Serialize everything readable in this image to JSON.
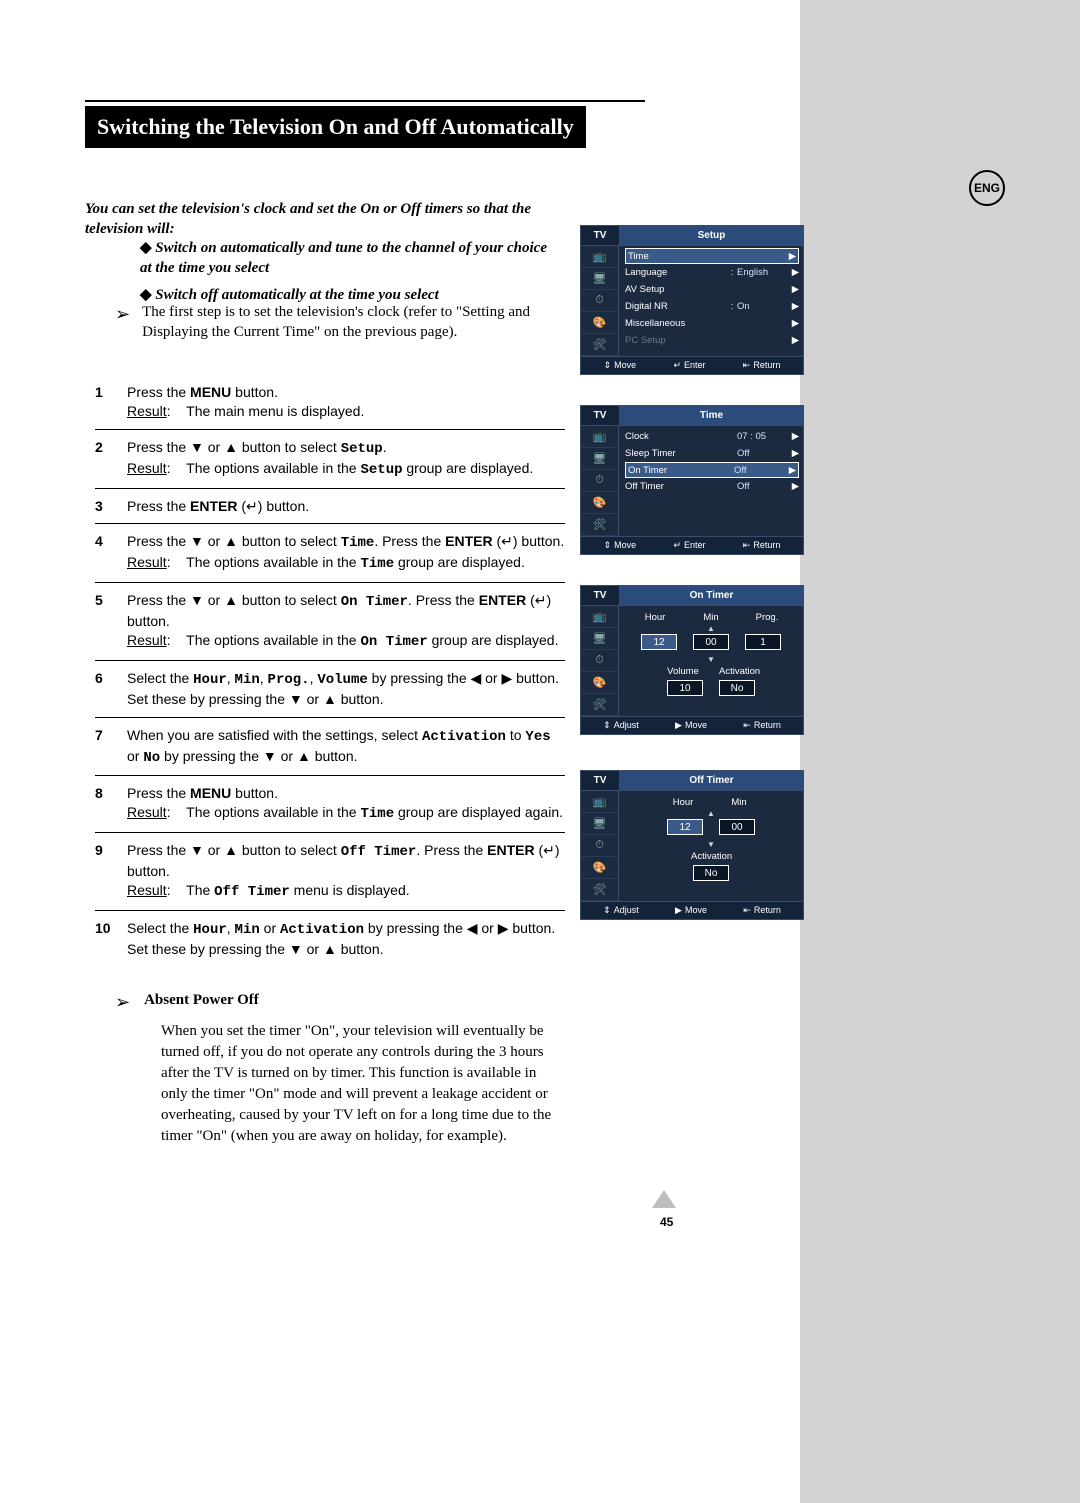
{
  "title": "Switching the Television On and Off Automatically",
  "lang_badge": "ENG",
  "intro": "You can set the television's clock and set the On or Off timers so that the television will:",
  "bullets": [
    "Switch on automatically and tune to the channel of your choice at the time you select",
    "Switch off automatically at the time you select"
  ],
  "note": "The first step is to set the television's clock (refer to \"Setting and Displaying the Current Time\" on the previous page).",
  "steps": {
    "s1": {
      "num": "1",
      "a": "Press the ",
      "b": "MENU",
      "c": " button.",
      "r_lab": "Result",
      "r": "The main menu is displayed."
    },
    "s2": {
      "num": "2",
      "a": "Press the ▼ or ▲ button to select ",
      "code": "Setup",
      "b": ".",
      "r_lab": "Result",
      "r1": "The options available in the ",
      "code2": "Setup",
      "r2": " group are displayed."
    },
    "s3": {
      "num": "3",
      "a": "Press the ",
      "b": "ENTER",
      "c": " (↵) button."
    },
    "s4": {
      "num": "4",
      "a": "Press the ▼ or ▲ button to select ",
      "code": "Time",
      "b": ". Press the ",
      "c": "ENTER",
      "d": " (↵) button.",
      "r_lab": "Result",
      "r1": "The options available in the ",
      "code2": "Time",
      "r2": " group are displayed."
    },
    "s5": {
      "num": "5",
      "a": "Press the ▼ or ▲ button to select ",
      "code": "On Timer",
      "b": ". Press the ",
      "c": "ENTER",
      "d": " (↵) button.",
      "r_lab": "Result",
      "r1": "The options available in the ",
      "code2": "On Timer",
      "r2": " group are displayed."
    },
    "s6": {
      "num": "6",
      "a": "Select the ",
      "c1": "Hour",
      "sep": ", ",
      "c2": "Min",
      "c3": "Prog.",
      "c4": "Volume",
      "b": " by pressing the ◀ or ▶ button.",
      "c": "Set these by pressing the ▼ or ▲ button."
    },
    "s7": {
      "num": "7",
      "a": "When you are satisfied with the settings, select ",
      "code": "Activation",
      "b": " to ",
      "c1": "Yes",
      "or": " or ",
      "c2": "No",
      "c": " by pressing the ▼ or ▲ button."
    },
    "s8": {
      "num": "8",
      "a": "Press the ",
      "b": "MENU",
      "c": " button.",
      "r_lab": "Result",
      "r1": "The options available in the ",
      "code2": "Time",
      "r2": " group are displayed again."
    },
    "s9": {
      "num": "9",
      "a": "Press the ▼ or ▲ button to select ",
      "code": "Off Timer",
      "b": ". Press the ",
      "c": "ENTER",
      "d": " (↵) button.",
      "r_lab": "Result",
      "r1": "The ",
      "code2": "Off Timer",
      "r2": " menu is displayed."
    },
    "s10": {
      "num": "10",
      "a": "Select the ",
      "c1": "Hour",
      "sep": ", ",
      "c2": "Min",
      "or": " or ",
      "c3": "Activation",
      "b": " by pressing the ◀ or ▶ button.",
      "c": "Set these by pressing the ▼ or ▲ button."
    }
  },
  "absent": {
    "title": "Absent Power Off",
    "text": "When you set the timer \"On\", your television will eventually be turned off, if you do not operate any controls during the 3 hours after the TV is turned on by timer. This function is available in only the timer \"On\" mode and will prevent a leakage accident or overheating, caused by your TV left on for a long time due to the timer \"On\" (when you are away on holiday, for example)."
  },
  "page_number": "45",
  "osd": {
    "tv_label": "TV",
    "icons": [
      "📺",
      "🖥",
      "⏱",
      "🎨",
      "🛠"
    ],
    "nav": {
      "move": "Move",
      "enter": "Enter",
      "return": "Return",
      "adjust": "Adjust"
    },
    "setup": {
      "title": "Setup",
      "rows": [
        {
          "label": "Time",
          "val": "",
          "sel": true,
          "arrow": true
        },
        {
          "label": "Language",
          "val": "English",
          "colon": true,
          "arrow": true
        },
        {
          "label": "AV Setup",
          "val": "",
          "arrow": true
        },
        {
          "label": "Digital NR",
          "val": "On",
          "colon": true,
          "arrow": true
        },
        {
          "label": "Miscellaneous",
          "val": "",
          "arrow": true
        },
        {
          "label": "PC Setup",
          "val": "",
          "dim": true,
          "arrow": true
        }
      ]
    },
    "time": {
      "title": "Time",
      "rows": [
        {
          "label": "Clock",
          "val": "07 : 05",
          "arrow": true
        },
        {
          "label": "Sleep Timer",
          "val": "Off",
          "arrow": true
        },
        {
          "label": "On Timer",
          "val": "Off",
          "sel": true,
          "arrow": true
        },
        {
          "label": "Off Timer",
          "val": "Off",
          "arrow": true
        }
      ]
    },
    "on_timer": {
      "title": "On Timer",
      "labels1": [
        "Hour",
        "Min",
        "Prog."
      ],
      "values1": [
        "12",
        "00",
        "1"
      ],
      "labels2": [
        "Volume",
        "Activation"
      ],
      "values2": [
        "10",
        "No"
      ],
      "selected": 0
    },
    "off_timer": {
      "title": "Off Timer",
      "labels1": [
        "Hour",
        "Min"
      ],
      "values1": [
        "12",
        "00"
      ],
      "labels2": [
        "Activation"
      ],
      "values2": [
        "No"
      ],
      "selected": 0
    }
  }
}
